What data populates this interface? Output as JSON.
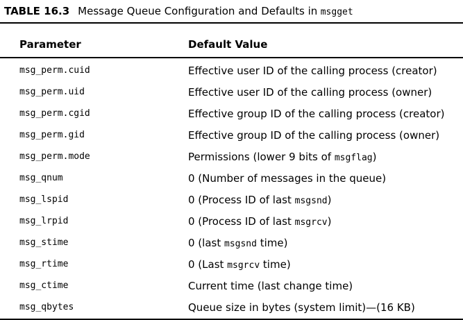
{
  "caption": {
    "number": "TABLE 16.3",
    "title": "Message Queue Configuration and Defaults in",
    "function_name": "msgget"
  },
  "table": {
    "headers": {
      "parameter": "Parameter",
      "default_value": "Default Value"
    },
    "rows": [
      {
        "parameter": "msg_perm.cuid",
        "pre": "Effective user ID of the calling process (creator)",
        "code": "",
        "post": ""
      },
      {
        "parameter": "msg_perm.uid",
        "pre": "Effective user ID of the calling process (owner)",
        "code": "",
        "post": ""
      },
      {
        "parameter": "msg_perm.cgid",
        "pre": "Effective group ID of the calling process (creator)",
        "code": "",
        "post": ""
      },
      {
        "parameter": "msg_perm.gid",
        "pre": "Effective group ID of the calling process (owner)",
        "code": "",
        "post": ""
      },
      {
        "parameter": "msg_perm.mode",
        "pre": "Permissions (lower 9 bits of ",
        "code": "msgflag",
        "post": ")"
      },
      {
        "parameter": "msg_qnum",
        "pre": "0 (Number of messages in the queue)",
        "code": "",
        "post": ""
      },
      {
        "parameter": "msg_lspid",
        "pre": "0 (Process ID of last ",
        "code": "msgsnd",
        "post": ")"
      },
      {
        "parameter": "msg_lrpid",
        "pre": "0 (Process ID of last ",
        "code": "msgrcv",
        "post": ")"
      },
      {
        "parameter": "msg_stime",
        "pre": "0 (last ",
        "code": "msgsnd",
        "post": " time)"
      },
      {
        "parameter": "msg_rtime",
        "pre": "0 (Last ",
        "code": "msgrcv",
        "post": " time)"
      },
      {
        "parameter": "msg_ctime",
        "pre": "Current time (last change time)",
        "code": "",
        "post": ""
      },
      {
        "parameter": "msg_qbytes",
        "pre": "Queue size in bytes (system limit)—(16 KB)",
        "code": "",
        "post": ""
      }
    ]
  }
}
